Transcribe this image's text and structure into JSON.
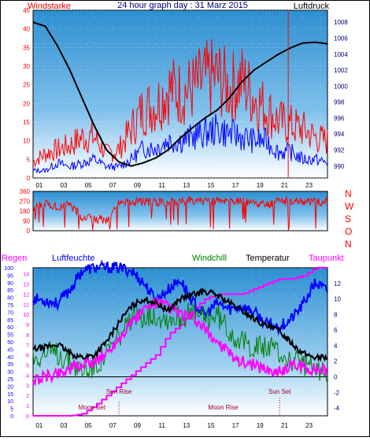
{
  "colors": {
    "wind_speed": "#ff0000",
    "wind_gust_dir": "#ff0000",
    "pressure": "#000000",
    "blue_series": "#0000ff",
    "humidity": "#0000ff",
    "windchill": "#008000",
    "temperature": "#000000",
    "dewpoint": "#ff00ff",
    "rain": "#ff00ff",
    "axis_left": "#ff0000",
    "axis_right": "#000080",
    "title": "#000080"
  },
  "chart_data": [
    {
      "type": "line",
      "title": "24 hour graph day : 31 Marz 2015",
      "left_label": "Windstarke",
      "right_label": "Luftdruck",
      "x_ticks": [
        "01",
        "03",
        "05",
        "07",
        "09",
        "11",
        "13",
        "15",
        "17",
        "19",
        "21",
        "23"
      ],
      "left_ticks": [
        "0",
        "5",
        "10",
        "15",
        "20",
        "25",
        "30",
        "35",
        "40",
        "45"
      ],
      "right_ticks": [
        "990",
        "992",
        "994",
        "996",
        "998",
        "1000",
        "1002",
        "1004",
        "1006",
        "1008"
      ],
      "ylim_left": [
        0,
        45
      ],
      "ylim_right": [
        988.5,
        1009.5
      ],
      "grid": true,
      "series": [
        {
          "axis": "right",
          "x": [
            0,
            1,
            2,
            3,
            4,
            5,
            6,
            7,
            8,
            9,
            10,
            11,
            12,
            13,
            14,
            15,
            16,
            17,
            18,
            19,
            20,
            21,
            22,
            23,
            24
          ],
          "values": [
            1008,
            1007.5,
            1005,
            1002,
            998.5,
            995,
            992,
            990.5,
            990,
            990.4,
            991,
            992,
            993.5,
            994.8,
            996,
            997,
            998.5,
            1000.5,
            1002,
            1003,
            1004,
            1004.8,
            1005.4,
            1005.5,
            1005.3
          ]
        },
        {
          "axis": "left",
          "x": [
            0,
            1,
            2,
            3,
            4,
            5,
            6,
            7,
            8,
            9,
            10,
            11,
            12,
            13,
            14,
            15,
            16,
            17,
            18,
            19,
            20,
            21,
            22,
            23,
            24
          ],
          "values": [
            4,
            6,
            7,
            8,
            10,
            10,
            6,
            7,
            12,
            17,
            18,
            22,
            21,
            22,
            24,
            25,
            22,
            24,
            20,
            17,
            14,
            13,
            12,
            10,
            9
          ]
        },
        {
          "axis": "left",
          "x": [
            0,
            1,
            2,
            3,
            4,
            5,
            6,
            7,
            8,
            9,
            10,
            11,
            12,
            13,
            14,
            15,
            16,
            17,
            18,
            19,
            20,
            21,
            22,
            23,
            24
          ],
          "values": [
            2,
            2,
            4,
            3,
            4,
            5,
            3,
            3,
            5,
            8,
            8,
            10,
            10,
            11,
            12,
            13,
            12,
            11,
            10,
            10,
            7,
            7,
            5,
            5,
            4
          ]
        }
      ]
    },
    {
      "type": "line",
      "left_ticks": [
        "0",
        "90",
        "180",
        "270",
        "360"
      ],
      "ylim": [
        0,
        360
      ],
      "direction_letters": [
        "N",
        "W",
        "S",
        "O",
        "N"
      ],
      "series": [
        {
          "x": [
            0,
            1,
            2,
            3,
            4,
            5,
            6,
            7,
            8,
            9,
            10,
            11,
            12,
            13,
            14,
            15,
            16,
            17,
            18,
            19,
            20,
            21,
            22,
            23,
            24
          ],
          "values": [
            200,
            250,
            220,
            240,
            130,
            110,
            100,
            250,
            260,
            270,
            260,
            265,
            270,
            275,
            280,
            270,
            265,
            270,
            260,
            240,
            270,
            275,
            270,
            260,
            270
          ]
        }
      ]
    },
    {
      "type": "line",
      "labels": {
        "rain": "Regen",
        "humidity": "Luftfeuchte",
        "windchill": "Windchill",
        "temperature": "Temperatur",
        "dewpoint": "Taupunkt"
      },
      "left_ticks": [
        "0",
        "5",
        "10",
        "15",
        "20",
        "25",
        "30",
        "35",
        "40",
        "45",
        "50",
        "55",
        "60",
        "65",
        "70",
        "75",
        "80",
        "85",
        "90",
        "95",
        "100"
      ],
      "rain_ticks": [
        "0",
        "1",
        "2",
        "3",
        "4",
        "5",
        "6",
        "7",
        "8",
        "9",
        "10",
        "11",
        "12",
        "13",
        "14"
      ],
      "right_ticks": [
        "-4",
        "-2",
        "0",
        "2",
        "4",
        "6",
        "8",
        "10",
        "12"
      ],
      "ylim_right": [
        -5,
        14
      ],
      "ylim_humidity": [
        0,
        100
      ],
      "ylim_rain": [
        0,
        14.6
      ],
      "annotations": [
        {
          "text": "Sun Rise",
          "x": 7.0
        },
        {
          "text": "Sun Set",
          "x": 20.1
        },
        {
          "text": "Moon Set",
          "x": 4.8
        },
        {
          "text": "Moon Rise",
          "x": 15.5
        }
      ],
      "series": [
        {
          "name": "Temperatur",
          "axis": "right",
          "x": [
            0,
            1,
            2,
            3,
            4,
            5,
            6,
            7,
            8,
            9,
            10,
            11,
            12,
            13,
            14,
            15,
            16,
            17,
            18,
            19,
            20,
            21,
            22,
            23,
            24
          ],
          "values": [
            3.5,
            3.8,
            4.2,
            3,
            2.5,
            2.8,
            4.5,
            7,
            9,
            10,
            9.5,
            8.5,
            10,
            10.5,
            11,
            10.5,
            9.5,
            8.5,
            7.5,
            6.5,
            6,
            4.5,
            3,
            2.5,
            2.5
          ]
        },
        {
          "name": "Windchill",
          "axis": "right",
          "x": [
            0,
            1,
            2,
            3,
            4,
            5,
            6,
            7,
            8,
            9,
            10,
            11,
            12,
            13,
            14,
            15,
            16,
            17,
            18,
            19,
            20,
            21,
            22,
            23,
            24
          ],
          "values": [
            2.5,
            3,
            3,
            2,
            0.8,
            1.3,
            3,
            5.2,
            7,
            8,
            8,
            7.5,
            7.8,
            8,
            7.5,
            8,
            6,
            4.5,
            4,
            3.8,
            3.2,
            2,
            1.5,
            0.8,
            0.8
          ]
        },
        {
          "name": "Taupunkt",
          "axis": "right",
          "x": [
            0,
            1,
            2,
            3,
            4,
            5,
            6,
            7,
            8,
            9,
            10,
            11,
            12,
            13,
            14,
            15,
            16,
            17,
            18,
            19,
            20,
            21,
            22,
            23,
            24
          ],
          "values": [
            -0.5,
            0,
            0.5,
            1,
            1.5,
            2,
            3,
            5,
            7,
            8.5,
            9.5,
            9,
            8,
            7.5,
            6,
            4.5,
            3,
            2,
            1.5,
            1,
            0.5,
            1.5,
            1.2,
            1,
            0.8
          ]
        },
        {
          "name": "Luftfeuchte",
          "axis": "humidity",
          "x": [
            0,
            1,
            2,
            3,
            4,
            5,
            6,
            7,
            8,
            9,
            10,
            11,
            12,
            13,
            14,
            15,
            16,
            17,
            18,
            19,
            20,
            21,
            22,
            23,
            24
          ],
          "values": [
            79,
            78,
            76,
            85,
            98,
            100,
            100,
            100,
            98,
            90,
            78,
            85,
            92,
            77,
            68,
            76,
            72,
            74,
            70,
            62,
            60,
            65,
            75,
            90,
            84
          ]
        },
        {
          "name": "Regen",
          "axis": "rain",
          "x": [
            0,
            1,
            2,
            3,
            4,
            5,
            6,
            7,
            8,
            9,
            10,
            11,
            12,
            13,
            14,
            15,
            16,
            17,
            18,
            19,
            20,
            21,
            22,
            23,
            24
          ],
          "values": [
            0,
            0,
            0,
            0,
            0.2,
            1,
            2,
            3,
            4,
            5,
            6,
            8,
            9,
            10.5,
            11.5,
            12,
            12,
            12,
            12.5,
            13,
            13.5,
            13.5,
            13.8,
            14.6,
            14.6
          ]
        }
      ]
    }
  ]
}
